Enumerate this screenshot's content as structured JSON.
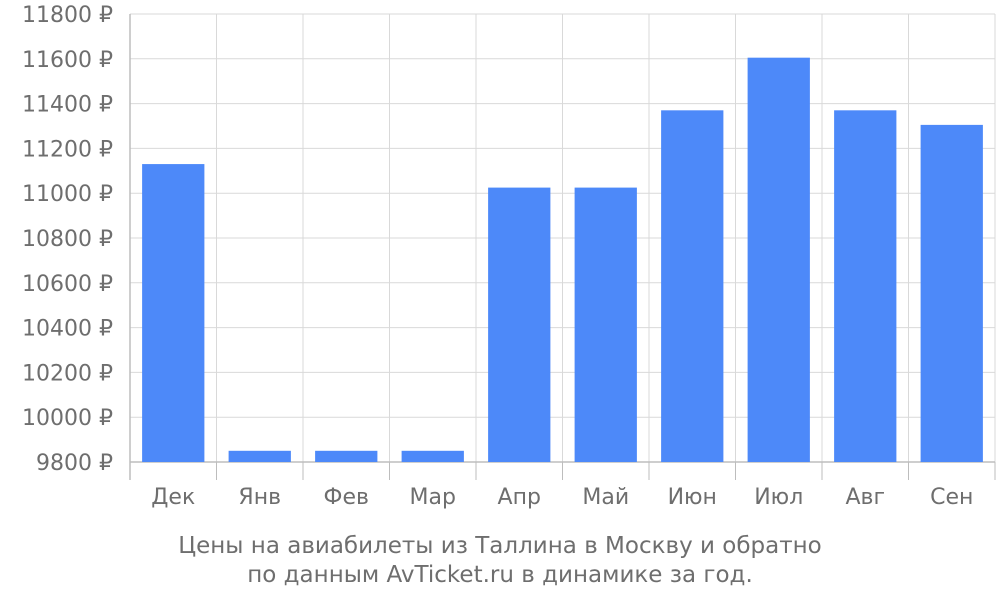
{
  "chart_data": {
    "type": "bar",
    "categories": [
      "Дек",
      "Янв",
      "Фев",
      "Мар",
      "Апр",
      "Май",
      "Июн",
      "Июл",
      "Авг",
      "Сен"
    ],
    "values": [
      11130,
      9850,
      9850,
      9850,
      11025,
      11025,
      11370,
      11605,
      11370,
      11305
    ],
    "ylim": [
      9800,
      11800
    ],
    "yticks": [
      9800,
      10000,
      10200,
      10400,
      10600,
      10800,
      11000,
      11200,
      11400,
      11600,
      11800
    ],
    "y_unit_suffix": "₽",
    "grid": true,
    "bar_color": "#4d89f9",
    "grid_color": "#d9d9d9",
    "text_color": "#6e6e6e"
  },
  "caption": {
    "line1": "Цены на авиабилеты из Таллина в Москву и обратно",
    "line2": "по данным AvTicket.ru в динамике за год."
  }
}
